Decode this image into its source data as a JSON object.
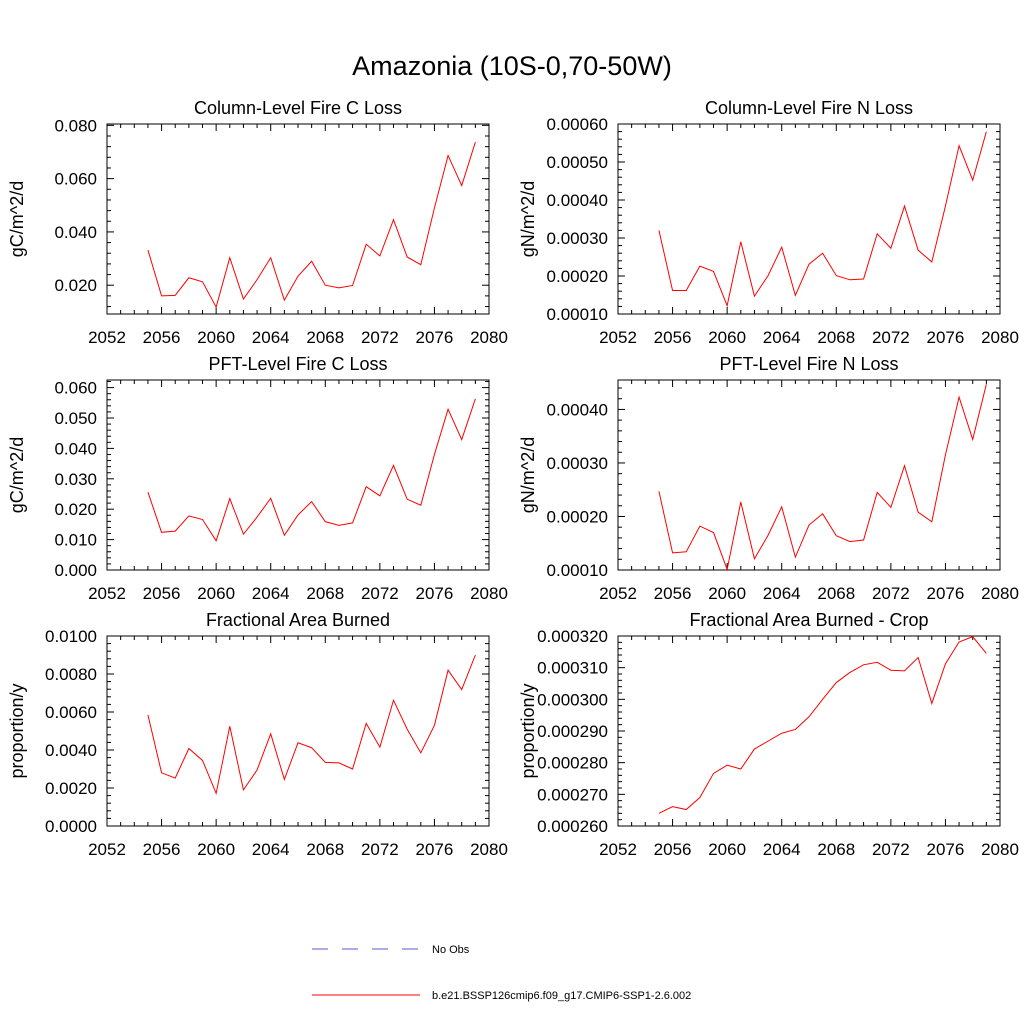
{
  "figure": {
    "title": "Amazonia (10S-0,70-50W)"
  },
  "legend": {
    "placement": "bottom-center",
    "entries": [
      {
        "label": "No Obs",
        "color": "#5a5acd",
        "style": "dashed"
      },
      {
        "label": "b.e21.BSSP126cmip6.f09_g17.CMIP6-SSP1-2.6.002",
        "color": "#ff0000",
        "style": "solid"
      }
    ]
  },
  "chart_data": [
    {
      "type": "line",
      "title": "Column-Level Fire C Loss",
      "xlabel": "",
      "ylabel": "gC/m^2/d",
      "xlim": [
        2052,
        2080
      ],
      "ylim": [
        0.0092,
        0.0805
      ],
      "xticks": [
        2052,
        2056,
        2060,
        2064,
        2068,
        2072,
        2076,
        2080
      ],
      "xtick_labels": [
        "2052",
        "2056",
        "2060",
        "2064",
        "2068",
        "2072",
        "2076",
        "2080"
      ],
      "yticks": [
        0.02,
        0.04,
        0.06,
        0.08
      ],
      "ytick_labels": [
        "0.020",
        "0.040",
        "0.060",
        "0.080"
      ],
      "series": [
        {
          "color": "#ff0000",
          "x": [
            2055,
            2056,
            2057,
            2058,
            2059,
            2060,
            2061,
            2062,
            2063,
            2064,
            2065,
            2066,
            2067,
            2068,
            2069,
            2070,
            2071,
            2072,
            2073,
            2074,
            2075,
            2076,
            2077,
            2078,
            2079
          ],
          "y": [
            0.0332,
            0.016,
            0.0162,
            0.0228,
            0.0213,
            0.0118,
            0.0303,
            0.0148,
            0.0221,
            0.0303,
            0.0144,
            0.0234,
            0.029,
            0.02,
            0.019,
            0.0199,
            0.0354,
            0.031,
            0.0446,
            0.0306,
            0.0277,
            0.049,
            0.0687,
            0.0574,
            0.0737
          ]
        }
      ]
    },
    {
      "type": "line",
      "title": "Column-Level Fire N Loss",
      "xlabel": "",
      "ylabel": "gN/m^2/d",
      "xlim": [
        2052,
        2080
      ],
      "ylim": [
        0.0001,
        0.0006
      ],
      "xticks": [
        2052,
        2056,
        2060,
        2064,
        2068,
        2072,
        2076,
        2080
      ],
      "xtick_labels": [
        "2052",
        "2056",
        "2060",
        "2064",
        "2068",
        "2072",
        "2076",
        "2080"
      ],
      "yticks": [
        0.0001,
        0.0002,
        0.0003,
        0.0004,
        0.0005,
        0.0006
      ],
      "ytick_labels": [
        "0.00010",
        "0.00020",
        "0.00030",
        "0.00040",
        "0.00050",
        "0.00060"
      ],
      "series": [
        {
          "color": "#ff0000",
          "x": [
            2055,
            2056,
            2057,
            2058,
            2059,
            2060,
            2061,
            2062,
            2063,
            2064,
            2065,
            2066,
            2067,
            2068,
            2069,
            2070,
            2071,
            2072,
            2073,
            2074,
            2075,
            2076,
            2077,
            2078,
            2079
          ],
          "y": [
            0.00032,
            0.000162,
            0.000162,
            0.000226,
            0.000212,
            0.000122,
            0.00029,
            0.000147,
            0.000201,
            0.000276,
            0.000149,
            0.000231,
            0.00026,
            0.000201,
            0.00019,
            0.000192,
            0.000311,
            0.000273,
            0.000384,
            0.000268,
            0.000237,
            0.000384,
            0.000543,
            0.000452,
            0.00058
          ]
        }
      ]
    },
    {
      "type": "line",
      "title": "PFT-Level Fire C Loss",
      "xlabel": "",
      "ylabel": "gC/m^2/d",
      "xlim": [
        2052,
        2080
      ],
      "ylim": [
        0.0,
        0.0625
      ],
      "xticks": [
        2052,
        2056,
        2060,
        2064,
        2068,
        2072,
        2076,
        2080
      ],
      "xtick_labels": [
        "2052",
        "2056",
        "2060",
        "2064",
        "2068",
        "2072",
        "2076",
        "2080"
      ],
      "yticks": [
        0.0,
        0.01,
        0.02,
        0.03,
        0.04,
        0.05,
        0.06
      ],
      "ytick_labels": [
        "0.000",
        "0.010",
        "0.020",
        "0.030",
        "0.040",
        "0.050",
        "0.060"
      ],
      "series": [
        {
          "color": "#ff0000",
          "x": [
            2055,
            2056,
            2057,
            2058,
            2059,
            2060,
            2061,
            2062,
            2063,
            2064,
            2065,
            2066,
            2067,
            2068,
            2069,
            2070,
            2071,
            2072,
            2073,
            2074,
            2075,
            2076,
            2077,
            2078,
            2079
          ],
          "y": [
            0.0256,
            0.0124,
            0.0128,
            0.0178,
            0.0166,
            0.0096,
            0.0235,
            0.0118,
            0.0174,
            0.0236,
            0.0114,
            0.0181,
            0.0225,
            0.0159,
            0.0147,
            0.0155,
            0.0274,
            0.0244,
            0.0344,
            0.0233,
            0.0213,
            0.038,
            0.0529,
            0.0429,
            0.0563
          ]
        }
      ]
    },
    {
      "type": "line",
      "title": "PFT-Level Fire N Loss",
      "xlabel": "",
      "ylabel": "gN/m^2/d",
      "xlim": [
        2052,
        2080
      ],
      "ylim": [
        0.0001,
        0.000455
      ],
      "xticks": [
        2052,
        2056,
        2060,
        2064,
        2068,
        2072,
        2076,
        2080
      ],
      "xtick_labels": [
        "2052",
        "2056",
        "2060",
        "2064",
        "2068",
        "2072",
        "2076",
        "2080"
      ],
      "yticks": [
        0.0001,
        0.0002,
        0.0003,
        0.0004
      ],
      "ytick_labels": [
        "0.00010",
        "0.00020",
        "0.00030",
        "0.00040"
      ],
      "series": [
        {
          "color": "#ff0000",
          "x": [
            2055,
            2056,
            2057,
            2058,
            2059,
            2060,
            2061,
            2062,
            2063,
            2064,
            2065,
            2066,
            2067,
            2068,
            2069,
            2070,
            2071,
            2072,
            2073,
            2074,
            2075,
            2076,
            2077,
            2078,
            2079
          ],
          "y": [
            0.000247,
            0.000132,
            0.000134,
            0.000182,
            0.00017,
            0.000101,
            0.000227,
            0.000121,
            0.000165,
            0.000218,
            0.000124,
            0.000184,
            0.000205,
            0.000164,
            0.000153,
            0.000156,
            0.000245,
            0.000217,
            0.000295,
            0.000208,
            0.00019,
            0.000315,
            0.000423,
            0.000344,
            0.000447
          ]
        }
      ]
    },
    {
      "type": "line",
      "title": "Fractional Area Burned",
      "xlabel": "",
      "ylabel": "proportion/y",
      "xlim": [
        2052,
        2080
      ],
      "ylim": [
        0.0,
        0.01
      ],
      "xticks": [
        2052,
        2056,
        2060,
        2064,
        2068,
        2072,
        2076,
        2080
      ],
      "xtick_labels": [
        "2052",
        "2056",
        "2060",
        "2064",
        "2068",
        "2072",
        "2076",
        "2080"
      ],
      "yticks": [
        0.0,
        0.002,
        0.004,
        0.006,
        0.008,
        0.01
      ],
      "ytick_labels": [
        "0.0000",
        "0.0020",
        "0.0040",
        "0.0060",
        "0.0080",
        "0.0100"
      ],
      "series": [
        {
          "color": "#ff0000",
          "x": [
            2055,
            2056,
            2057,
            2058,
            2059,
            2060,
            2061,
            2062,
            2063,
            2064,
            2065,
            2066,
            2067,
            2068,
            2069,
            2070,
            2071,
            2072,
            2073,
            2074,
            2075,
            2076,
            2077,
            2078,
            2079
          ],
          "y": [
            0.00585,
            0.0028,
            0.00252,
            0.00408,
            0.00345,
            0.00172,
            0.00525,
            0.0019,
            0.00295,
            0.00485,
            0.00245,
            0.00438,
            0.00412,
            0.00335,
            0.00332,
            0.003,
            0.0054,
            0.00415,
            0.00662,
            0.0051,
            0.00385,
            0.0053,
            0.0082,
            0.00718,
            0.009
          ]
        }
      ]
    },
    {
      "type": "line",
      "title": "Fractional Area Burned - Crop",
      "xlabel": "",
      "ylabel": "proportion/y",
      "xlim": [
        2052,
        2080
      ],
      "ylim": [
        0.00026,
        0.00032
      ],
      "xticks": [
        2052,
        2056,
        2060,
        2064,
        2068,
        2072,
        2076,
        2080
      ],
      "xtick_labels": [
        "2052",
        "2056",
        "2060",
        "2064",
        "2068",
        "2072",
        "2076",
        "2080"
      ],
      "yticks": [
        0.00026,
        0.00027,
        0.00028,
        0.00029,
        0.0003,
        0.00031,
        0.00032
      ],
      "ytick_labels": [
        "0.000260",
        "0.000270",
        "0.000280",
        "0.000290",
        "0.000300",
        "0.000310",
        "0.000320"
      ],
      "series": [
        {
          "color": "#ff0000",
          "x": [
            2055,
            2056,
            2057,
            2058,
            2059,
            2060,
            2061,
            2062,
            2063,
            2064,
            2065,
            2066,
            2067,
            2068,
            2069,
            2070,
            2071,
            2072,
            2073,
            2074,
            2075,
            2076,
            2077,
            2078,
            2079
          ],
          "y": [
            0.000264,
            0.0002661,
            0.0002652,
            0.000269,
            0.0002766,
            0.0002792,
            0.000278,
            0.0002843,
            0.0002868,
            0.0002893,
            0.0002905,
            0.0002945,
            0.0003,
            0.0003053,
            0.0003085,
            0.0003109,
            0.0003117,
            0.0003092,
            0.000309,
            0.0003132,
            0.0002987,
            0.0003112,
            0.0003181,
            0.0003198,
            0.0003145
          ]
        }
      ]
    }
  ]
}
